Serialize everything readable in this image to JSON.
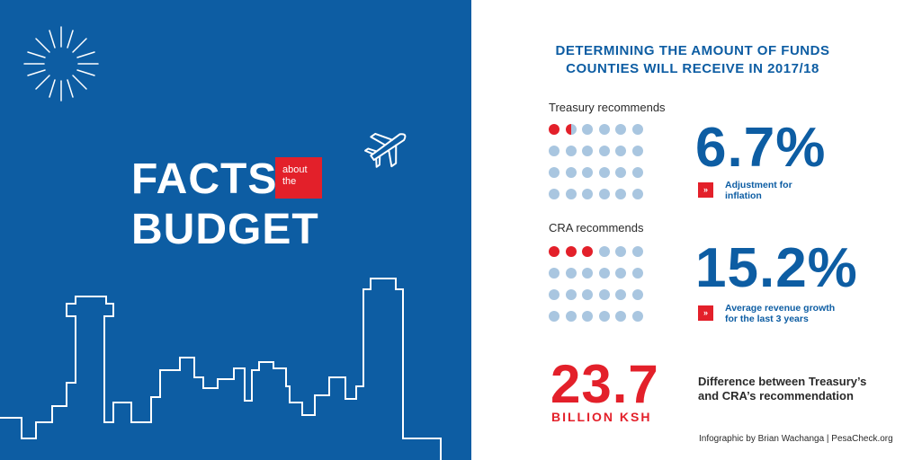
{
  "left": {
    "title_facts": "FACTS",
    "title_about_line1": "about",
    "title_about_line2": "the",
    "title_budget": "BUDGET",
    "decoration_icons": [
      "sunburst-icon",
      "airplane-icon",
      "city-skyline-icon"
    ]
  },
  "right": {
    "headline_line1": "DETERMINING THE AMOUNT OF FUNDS",
    "headline_line2": "COUNTIES WILL RECEIVE IN 2017/18",
    "treasury": {
      "label": "Treasury recommends",
      "percent": "6.7%",
      "highlighted_dots": 1.5,
      "total_dots": 24,
      "note_line1": "Adjustment for",
      "note_line2": "inflation"
    },
    "cra": {
      "label": "CRA recommends",
      "percent": "15.2%",
      "highlighted_dots": 3,
      "total_dots": 24,
      "note_line1": "Average revenue growth",
      "note_line2": "for the last 3 years"
    },
    "difference": {
      "value": "23.7",
      "unit": "BILLION KSH",
      "text_line1": "Difference between Treasury’s",
      "text_line2": "and CRA’s recommendation"
    },
    "arrow_symbol": "»",
    "credit": "Infographic by Brian Wachanga | PesaCheck.org"
  },
  "colors": {
    "brand_blue": "#0d5da3",
    "accent_red": "#e3202a",
    "dot_blue": "#a9c6e0"
  }
}
